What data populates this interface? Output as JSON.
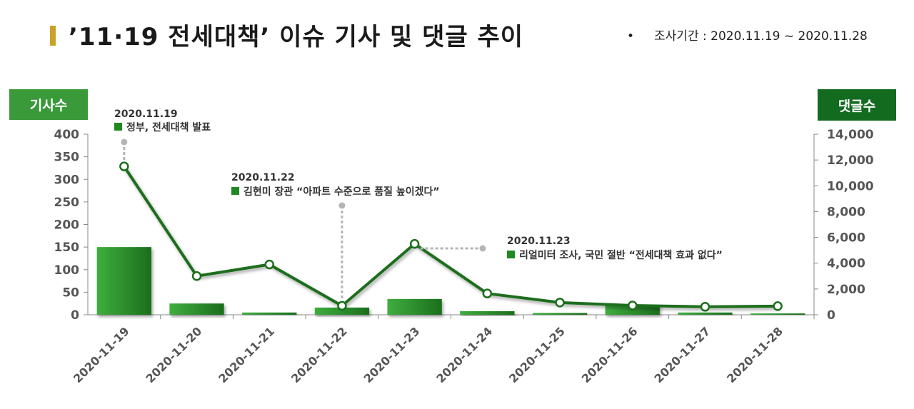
{
  "header": {
    "title": "’11·19 전세대책’ 이슈 기사 및 댓글 추이",
    "period_bullet": "•",
    "period": "조사기간 : 2020.11.19  ~ 2020.11.28"
  },
  "axis_badges": {
    "left": "기사수",
    "right": "댓글수"
  },
  "chart_data": {
    "type": "bar+line",
    "title": "’11·19 전세대책’ 이슈 기사 및 댓글 추이",
    "categories": [
      "2020-11-19",
      "2020-11-20",
      "2020-11-21",
      "2020-11-22",
      "2020-11-23",
      "2020-11-24",
      "2020-11-25",
      "2020-11-26",
      "2020-11-27",
      "2020-11-28"
    ],
    "series": [
      {
        "name": "기사수",
        "type": "bar",
        "axis": "left",
        "values": [
          150,
          25,
          5,
          16,
          35,
          8,
          4,
          22,
          5,
          3
        ],
        "color": "#2e8b2e"
      },
      {
        "name": "댓글수",
        "type": "line",
        "axis": "right",
        "values": [
          11500,
          3000,
          3900,
          700,
          5500,
          1650,
          950,
          720,
          620,
          670
        ],
        "color": "#1d6e1d"
      }
    ],
    "y_left": {
      "min": 0,
      "max": 400,
      "ticks": [
        "0",
        "50",
        "100",
        "150",
        "200",
        "250",
        "300",
        "350",
        "400"
      ]
    },
    "y_right": {
      "min": 0,
      "max": 14000,
      "ticks": [
        "0",
        "2,000",
        "4,000",
        "6,000",
        "8,000",
        "10,000",
        "12,000",
        "14,000"
      ]
    },
    "grid": false,
    "annotations": [
      {
        "category": "2020-11-19",
        "date": "2020.11.19",
        "text": "정부, 전세대책 발표"
      },
      {
        "category": "2020-11-22",
        "date": "2020.11.22",
        "text": "김현미 장관 “아파트 수준으로 품질 높이겠다”"
      },
      {
        "category": "2020-11-23",
        "date": "2020.11.23",
        "text": "리얼미터 조사, 국민 절반 “전세대책 효과 없다”"
      }
    ]
  }
}
